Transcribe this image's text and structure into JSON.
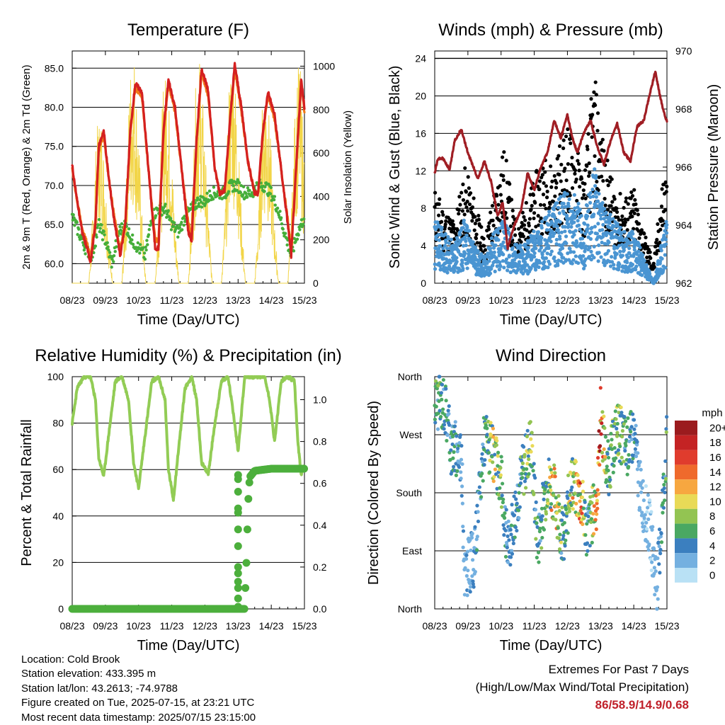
{
  "colors": {
    "temp_2m": "#d42020",
    "temp_9m": "#f07a18",
    "dewpoint": "#45ae3a",
    "solar": "#f2d548",
    "wind": "#4a95d2",
    "gust": "#000000",
    "pressure": "#a01e24",
    "humidity": "#92cc55",
    "precip": "#4caf3c",
    "extremes": "#c0202a"
  },
  "chart_data": [
    {
      "type": "line",
      "title": "Temperature (F)",
      "xlabel": "Time (Day/UTC)",
      "ylabel_left": "2m & 9m T (Red, Orange) & 2m Td (Green)",
      "ylabel_right": "Solar Insolation (Yellow)",
      "x_ticks": [
        "08/23",
        "09/23",
        "10/23",
        "11/23",
        "12/23",
        "13/23",
        "14/23",
        "15/23"
      ],
      "x_range": [
        0,
        7
      ],
      "ylim_left": [
        57.5,
        87.2
      ],
      "yticks_left": [
        "60.0",
        "65.0",
        "70.0",
        "75.0",
        "80.0",
        "85.0"
      ],
      "ylim_right": [
        0,
        1070
      ],
      "yticks_right": [
        "0",
        "200",
        "400",
        "600",
        "800",
        "1000"
      ],
      "series": [
        {
          "name": "2m T",
          "axis": "left",
          "x": [
            0,
            0.15,
            0.3,
            0.45,
            0.55,
            0.7,
            0.8,
            0.95,
            1.1,
            1.25,
            1.45,
            1.6,
            1.75,
            1.9,
            2.1,
            2.3,
            2.5,
            2.6,
            2.75,
            2.9,
            3.1,
            3.3,
            3.5,
            3.6,
            3.75,
            3.9,
            4.1,
            4.3,
            4.45,
            4.6,
            4.75,
            4.9,
            5.1,
            5.3,
            5.5,
            5.6,
            5.75,
            5.9,
            6.1,
            6.3,
            6.5,
            6.6,
            6.8,
            6.9,
            7
          ],
          "y": [
            72.5,
            68,
            64,
            62,
            60,
            65,
            75,
            77,
            71,
            66,
            61,
            65,
            77,
            83,
            82,
            72,
            62,
            62,
            77,
            83.5,
            80,
            72,
            64,
            63,
            76,
            85,
            82,
            72,
            69,
            69.5,
            78,
            85.5,
            80,
            73,
            69,
            69,
            77,
            82,
            79,
            72,
            65,
            61,
            76,
            83.5,
            80
          ]
        },
        {
          "name": "9m T",
          "axis": "left",
          "x": [
            0,
            0.15,
            0.3,
            0.45,
            0.55,
            0.7,
            0.8,
            0.95,
            1.1,
            1.25,
            1.45,
            1.6,
            1.75,
            1.9,
            2.1,
            2.3,
            2.5,
            2.6,
            2.75,
            2.9,
            3.1,
            3.3,
            3.5,
            3.6,
            3.75,
            3.9,
            4.1,
            4.3,
            4.45,
            4.6,
            4.75,
            4.9,
            5.1,
            5.3,
            5.5,
            5.6,
            5.75,
            5.9,
            6.1,
            6.3,
            6.5,
            6.6,
            6.8,
            6.9,
            7
          ],
          "y": [
            72,
            68,
            64.5,
            62.5,
            61,
            65.5,
            74.5,
            76.5,
            71,
            66.5,
            61.5,
            65.5,
            76.5,
            82.5,
            81.5,
            72,
            63,
            63,
            76.5,
            83,
            79.5,
            72,
            65,
            64,
            75.5,
            84.5,
            81.5,
            72,
            69,
            69.5,
            77.5,
            85,
            79.5,
            73,
            69,
            69,
            76.5,
            81.5,
            78.5,
            72,
            65.5,
            61.5,
            75.5,
            83,
            79.5
          ]
        },
        {
          "name": "2m Td",
          "axis": "left",
          "x": [
            0,
            0.2,
            0.4,
            0.6,
            0.8,
            1.0,
            1.2,
            1.4,
            1.6,
            1.8,
            2.0,
            2.2,
            2.4,
            2.6,
            2.8,
            3.0,
            3.2,
            3.4,
            3.6,
            3.8,
            4.0,
            4.2,
            4.4,
            4.6,
            4.8,
            5.0,
            5.2,
            5.4,
            5.6,
            5.8,
            6.0,
            6.2,
            6.4,
            6.6,
            6.8,
            7
          ],
          "y": [
            66,
            64,
            62,
            61,
            65,
            63,
            60,
            64,
            65,
            63,
            62,
            61,
            66,
            67,
            67,
            65,
            64,
            66,
            67,
            68,
            68,
            69,
            69,
            69,
            70,
            70,
            69,
            69,
            70,
            70,
            69,
            67,
            64,
            61,
            64,
            66
          ]
        },
        {
          "name": "Solar",
          "axis": "right",
          "x": [
            0,
            0.5,
            0.62,
            0.74,
            0.86,
            0.98,
            1.1,
            1.22,
            1.5,
            1.62,
            1.74,
            1.86,
            1.98,
            2.1,
            2.22,
            2.5,
            2.62,
            2.74,
            2.86,
            2.98,
            3.1,
            3.22,
            3.5,
            3.62,
            3.74,
            3.86,
            3.98,
            4.1,
            4.22,
            4.5,
            4.62,
            4.74,
            4.86,
            4.98,
            5.1,
            5.22,
            5.5,
            5.62,
            5.74,
            5.86,
            5.98,
            6.1,
            6.22,
            6.5,
            6.62,
            6.74,
            6.86,
            6.98
          ],
          "y": [
            0,
            0,
            300,
            650,
            720,
            500,
            200,
            0,
            0,
            400,
            900,
            1000,
            700,
            300,
            0,
            0,
            350,
            850,
            900,
            600,
            250,
            0,
            0,
            400,
            900,
            960,
            650,
            300,
            0,
            0,
            350,
            900,
            1000,
            700,
            300,
            0,
            0,
            300,
            800,
            880,
            600,
            250,
            0,
            0,
            350,
            850,
            950,
            600
          ]
        }
      ]
    },
    {
      "type": "line",
      "title": "Winds (mph) & Pressure (mb)",
      "xlabel": "Time (Day/UTC)",
      "ylabel_left": "Sonic Wind & Gust (Blue, Black)",
      "ylabel_right": "Station Pressure (Maroon)",
      "x_ticks": [
        "08/23",
        "09/23",
        "10/23",
        "11/23",
        "12/23",
        "13/23",
        "14/23",
        "15/23"
      ],
      "x_range": [
        0,
        7
      ],
      "ylim_left": [
        0,
        24.8
      ],
      "yticks_left": [
        "0",
        "4",
        "8",
        "12",
        "16",
        "20",
        "24"
      ],
      "ylim_right": [
        962,
        970
      ],
      "yticks_right": [
        "962",
        "964",
        "966",
        "968",
        "970"
      ],
      "series": [
        {
          "name": "Sonic Wind",
          "axis": "left",
          "x": [
            0,
            0.3,
            0.6,
            0.9,
            1.2,
            1.5,
            1.8,
            2.1,
            2.4,
            2.7,
            3.0,
            3.3,
            3.6,
            3.9,
            4.2,
            4.5,
            4.8,
            5.1,
            5.4,
            5.7,
            6.0,
            6.3,
            6.6,
            6.9,
            7
          ],
          "y": [
            5,
            4,
            3,
            5,
            3,
            2,
            4,
            5,
            3,
            3,
            4,
            5,
            6,
            7,
            7,
            5,
            9,
            6,
            5,
            4,
            4,
            2,
            0,
            4,
            5
          ]
        },
        {
          "name": "Gust",
          "axis": "left",
          "x": [
            0,
            0.3,
            0.6,
            0.9,
            1.2,
            1.5,
            1.8,
            2.1,
            2.4,
            2.7,
            3.0,
            3.3,
            3.6,
            3.9,
            4.2,
            4.5,
            4.8,
            5.1,
            5.4,
            5.7,
            6.0,
            6.3,
            6.6,
            6.9,
            7
          ],
          "y": [
            9,
            7,
            6,
            11,
            8,
            4,
            9,
            13,
            6,
            7,
            10,
            12,
            11,
            15,
            14,
            10,
            20,
            13,
            9,
            8,
            9,
            5,
            2,
            11,
            10
          ]
        },
        {
          "name": "Station Pressure",
          "axis": "right",
          "x": [
            0,
            0.1,
            0.25,
            0.45,
            0.6,
            0.8,
            1.0,
            1.3,
            1.5,
            1.7,
            1.9,
            2.05,
            2.2,
            2.4,
            2.6,
            2.8,
            3.0,
            3.2,
            3.4,
            3.6,
            3.8,
            4.0,
            4.15,
            4.3,
            4.5,
            4.7,
            4.9,
            5.1,
            5.3,
            5.5,
            5.7,
            5.9,
            6.1,
            6.3,
            6.5,
            6.65,
            6.8,
            6.95,
            7
          ],
          "y": [
            965.8,
            966.3,
            966.3,
            965.9,
            966.9,
            967.3,
            966.5,
            965.6,
            966.2,
            965.5,
            964.3,
            964.8,
            963.2,
            964.0,
            964.5,
            965.8,
            965.2,
            966.0,
            966.5,
            967.6,
            967.0,
            967.8,
            967.0,
            966.5,
            967.2,
            967.6,
            966.7,
            966.1,
            966.9,
            967.5,
            966.5,
            966.2,
            967.4,
            967.6,
            968.6,
            969.3,
            968.4,
            967.7,
            967.6
          ]
        }
      ]
    },
    {
      "type": "line",
      "title": "Relative Humidity (%) & Precipitation (in)",
      "xlabel": "Time (Day/UTC)",
      "ylabel_left": "Percent & Total Rainfall",
      "x_ticks": [
        "08/23",
        "09/23",
        "10/23",
        "11/23",
        "12/23",
        "13/23",
        "14/23",
        "15/23"
      ],
      "x_range": [
        0,
        7
      ],
      "ylim_left": [
        0,
        100
      ],
      "yticks_left": [
        "0",
        "20",
        "40",
        "60",
        "80",
        "100"
      ],
      "ylim_right": [
        0,
        1.11
      ],
      "yticks_right": [
        "0.0",
        "0.2",
        "0.4",
        "0.6",
        "0.8",
        "1.0"
      ],
      "series": [
        {
          "name": "Relative Humidity",
          "axis": "left",
          "x": [
            0,
            0.15,
            0.35,
            0.55,
            0.7,
            0.8,
            0.95,
            1.1,
            1.3,
            1.5,
            1.7,
            1.85,
            2.0,
            2.2,
            2.4,
            2.6,
            2.8,
            2.9,
            3.05,
            3.2,
            3.4,
            3.6,
            3.75,
            3.9,
            4.1,
            4.3,
            4.5,
            4.7,
            4.85,
            5.0,
            5.2,
            5.4,
            5.6,
            5.8,
            5.95,
            6.1,
            6.3,
            6.5,
            6.7,
            6.8,
            6.9,
            7
          ],
          "y": [
            80,
            95,
            100,
            100,
            90,
            65,
            57,
            75,
            98,
            100,
            90,
            63,
            52,
            75,
            98,
            100,
            90,
            60,
            47,
            68,
            95,
            100,
            90,
            63,
            58,
            80,
            98,
            100,
            85,
            68,
            100,
            100,
            100,
            100,
            90,
            72,
            98,
            100,
            98,
            72,
            58,
            62
          ]
        },
        {
          "name": "Total Rainfall",
          "axis": "right",
          "x": [
            0,
            5.1,
            5.2,
            5.22,
            5.25,
            5.28,
            5.3,
            5.35,
            5.5,
            6.0,
            6.5,
            7
          ],
          "y": [
            0,
            0,
            0.0,
            0.1,
            0.22,
            0.38,
            0.5,
            0.63,
            0.66,
            0.67,
            0.67,
            0.67
          ]
        }
      ]
    },
    {
      "type": "scatter",
      "title": "Wind Direction",
      "xlabel": "Time (Day/UTC)",
      "ylabel_left": "Direction (Colored By Speed)",
      "x_ticks": [
        "08/23",
        "09/23",
        "10/23",
        "11/23",
        "12/23",
        "13/23",
        "14/23",
        "15/23"
      ],
      "x_range": [
        0,
        7
      ],
      "ylim_left": [
        0,
        360
      ],
      "yticks_left": [
        "North",
        "East",
        "South",
        "West",
        "North"
      ],
      "series": [
        {
          "name": "Direction",
          "x": [
            0,
            0.3,
            0.5,
            0.8,
            0.9,
            1.2,
            1.5,
            1.8,
            2.0,
            2.2,
            2.6,
            2.9,
            3.1,
            3.4,
            3.6,
            3.9,
            4.1,
            4.4,
            4.6,
            4.9,
            5.0,
            5.2,
            5.5,
            5.8,
            6.0,
            6.2,
            6.5,
            6.7,
            7
          ],
          "y": [
            320,
            320,
            250,
            240,
            60,
            80,
            270,
            230,
            200,
            90,
            200,
            260,
            100,
            200,
            180,
            100,
            200,
            170,
            120,
            170,
            300,
            210,
            280,
            250,
            270,
            180,
            120,
            30,
            260
          ],
          "speed": [
            6,
            4,
            5,
            3,
            2,
            3,
            5,
            8,
            6,
            3,
            5,
            8,
            4,
            6,
            11,
            4,
            8,
            13,
            3,
            13,
            16,
            6,
            7,
            5,
            4,
            2,
            1,
            2,
            6
          ]
        }
      ],
      "colorbar": {
        "title": "mph",
        "labels": [
          "20+",
          "18",
          "16",
          "14",
          "12",
          "10",
          "8",
          "6",
          "4",
          "2",
          "0"
        ],
        "colors": [
          "#9b1b1e",
          "#c42324",
          "#e03c2d",
          "#ef6a2c",
          "#f7a740",
          "#e9da57",
          "#93c452",
          "#4aa862",
          "#3b7fbf",
          "#74b0e0",
          "#b9e1f5"
        ]
      }
    }
  ],
  "info": {
    "location": "Location: Cold Brook",
    "elevation": "Station elevation: 433.395 m",
    "latlon": "Station lat/lon: 43.2613; -74.9788",
    "created": "Figure created on Tue, 2025-07-15, at 23:21 UTC",
    "timestamp": "Most recent data timestamp: 2025/07/15 23:15:00"
  },
  "extremes": {
    "title": "Extremes For Past 7 Days",
    "subtitle": "(High/Low/Max Wind/Total Precipitation)",
    "values": "86/58.9/14.9/0.68"
  }
}
